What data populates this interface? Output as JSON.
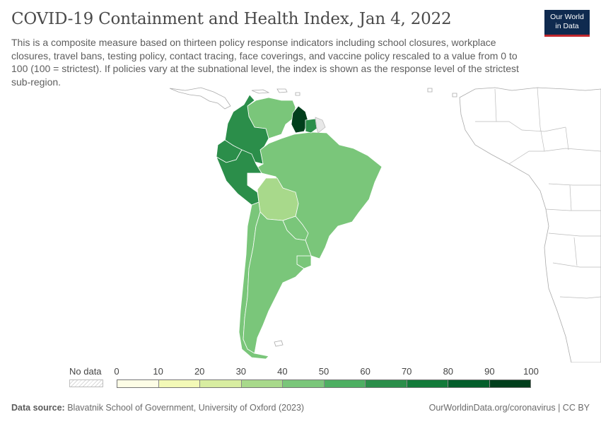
{
  "title": "COVID-19 Containment and Health Index, Jan 4, 2022",
  "subtitle": "This is a composite measure based on thirteen policy response indicators including school closures, workplace closures, travel bans, testing policy, contact tracing, face coverings, and vaccine policy rescaled to a value from 0 to 100 (100 = strictest). If policies vary at the subnational level, the index is shown as the response level of the strictest sub-region.",
  "logo": {
    "line1": "Our World",
    "line2": "in Data"
  },
  "legend": {
    "no_data_label": "No data",
    "ticks": [
      "0",
      "10",
      "20",
      "30",
      "40",
      "50",
      "60",
      "70",
      "80",
      "90",
      "100"
    ],
    "bin_colors": [
      "#fdfde6",
      "#f3f9b7",
      "#d8eda1",
      "#a8d98b",
      "#7ac67a",
      "#4daf62",
      "#2b8e4a",
      "#137a3a",
      "#045e2b",
      "#013f1c"
    ],
    "no_data_color": "#e8e8e8",
    "outside_color": "#ffffff"
  },
  "footer": {
    "source_label": "Data source:",
    "source_text": "Blavatnik School of Government, University of Oxford (2023)",
    "url_text": "OurWorldinData.org/coronavirus | CC BY"
  },
  "map_data": {
    "region": "South America",
    "date": "Jan 4, 2022",
    "countries": [
      {
        "name": "Colombia",
        "bin": "70-80",
        "value_range": [
          70,
          80
        ]
      },
      {
        "name": "Venezuela",
        "bin": "50-60",
        "value_range": [
          50,
          60
        ]
      },
      {
        "name": "Guyana",
        "bin": "90-100",
        "value_range": [
          90,
          100
        ]
      },
      {
        "name": "Suriname",
        "bin": "70-80",
        "value_range": [
          70,
          80
        ]
      },
      {
        "name": "French Guiana",
        "bin": "no data",
        "value_range": null
      },
      {
        "name": "Ecuador",
        "bin": "70-80",
        "value_range": [
          70,
          80
        ]
      },
      {
        "name": "Peru",
        "bin": "70-80",
        "value_range": [
          70,
          80
        ]
      },
      {
        "name": "Brazil",
        "bin": "50-60",
        "value_range": [
          50,
          60
        ]
      },
      {
        "name": "Bolivia",
        "bin": "30-40",
        "value_range": [
          30,
          40
        ]
      },
      {
        "name": "Paraguay",
        "bin": "50-60",
        "value_range": [
          50,
          60
        ]
      },
      {
        "name": "Chile",
        "bin": "50-60",
        "value_range": [
          50,
          60
        ]
      },
      {
        "name": "Argentina",
        "bin": "50-60",
        "value_range": [
          50,
          60
        ]
      },
      {
        "name": "Uruguay",
        "bin": "50-60",
        "value_range": [
          50,
          60
        ]
      }
    ]
  }
}
